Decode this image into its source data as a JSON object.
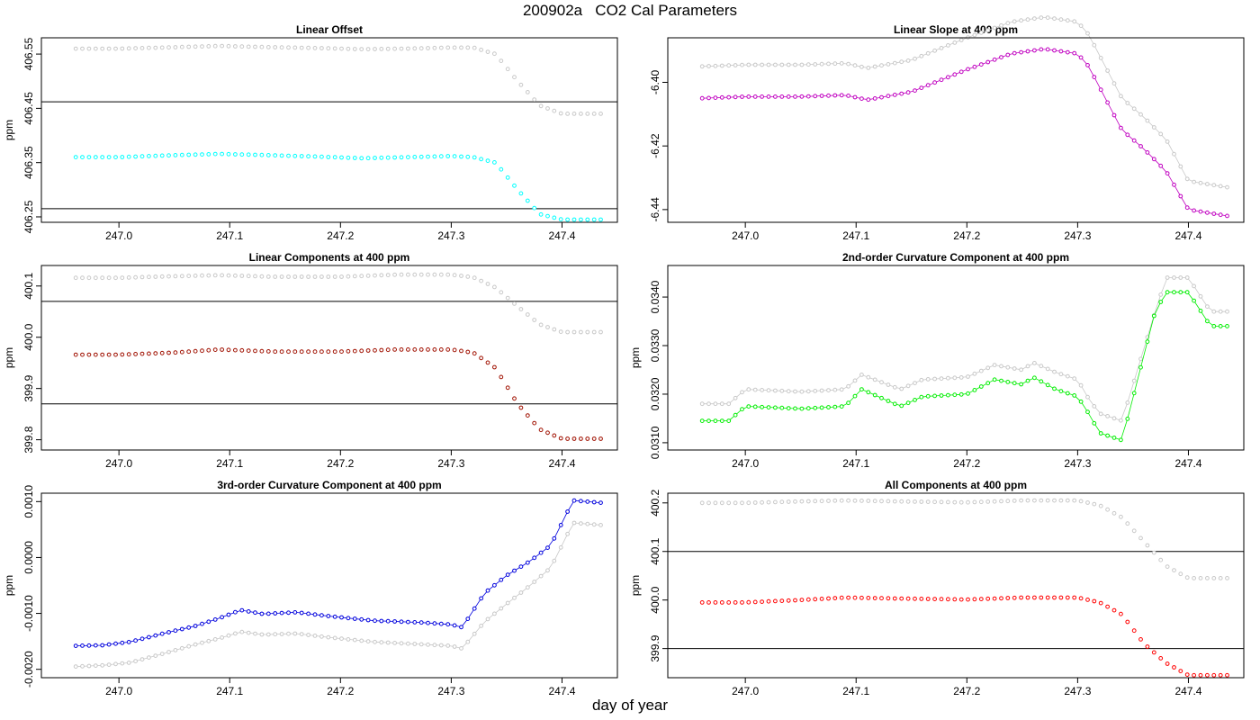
{
  "page": {
    "title": "200902a   CO2 Cal Parameters",
    "xlabel": "day of year"
  },
  "colors": {
    "reference_series": "#c8c8c8",
    "hline": "#000000",
    "frame": "#000000"
  },
  "chart_data": [
    {
      "type": "scatter",
      "title": "Linear Offset",
      "ylabel": "ppm",
      "xlim": [
        246.93,
        247.45
      ],
      "ylim": [
        406.24,
        406.58
      ],
      "xticks": [
        "247.0",
        "247.1",
        "247.2",
        "247.3",
        "247.4"
      ],
      "yticks": [
        "406.25",
        "406.35",
        "406.45",
        "406.55"
      ],
      "hlines": [
        406.265,
        406.462
      ],
      "series": [
        {
          "color": "#c8c8c8",
          "style": "points",
          "x": [
            246.961,
            247.0,
            247.04,
            247.09,
            247.13,
            247.18,
            247.22,
            247.26,
            247.3,
            247.32,
            247.34,
            247.36,
            247.38,
            247.4,
            247.435
          ],
          "y": [
            406.56,
            406.56,
            406.562,
            406.565,
            406.563,
            406.561,
            406.559,
            406.56,
            406.562,
            406.562,
            406.55,
            406.5,
            406.455,
            406.44,
            406.44
          ]
        },
        {
          "color": "#00ffff",
          "style": "points",
          "x": [
            246.961,
            247.0,
            247.04,
            247.09,
            247.13,
            247.18,
            247.22,
            247.26,
            247.3,
            247.32,
            247.34,
            247.36,
            247.38,
            247.4,
            247.435
          ],
          "y": [
            406.36,
            406.36,
            406.363,
            406.366,
            406.364,
            406.361,
            406.358,
            406.36,
            406.362,
            406.36,
            406.35,
            406.3,
            406.255,
            406.245,
            406.245
          ]
        }
      ]
    },
    {
      "type": "scatter",
      "title": "Linear Slope at 400 ppm",
      "ylabel": "",
      "xlim": [
        246.93,
        247.45
      ],
      "ylim": [
        -6.444,
        -6.386
      ],
      "xticks": [
        "247.0",
        "247.1",
        "247.2",
        "247.3",
        "247.4"
      ],
      "yticks": [
        "-6.44",
        "-6.42",
        "-6.40"
      ],
      "hlines": [],
      "series": [
        {
          "color": "#c8c8c8",
          "style": "line-points",
          "x": [
            246.961,
            247.0,
            247.05,
            247.09,
            247.11,
            247.15,
            247.2,
            247.24,
            247.27,
            247.3,
            247.31,
            247.325,
            247.34,
            247.36,
            247.38,
            247.4,
            247.435
          ],
          "y": [
            -6.395,
            -6.3945,
            -6.3945,
            -6.394,
            -6.3955,
            -6.393,
            -6.386,
            -6.381,
            -6.3795,
            -6.381,
            -6.385,
            -6.395,
            -6.405,
            -6.411,
            -6.418,
            -6.431,
            -6.433
          ]
        },
        {
          "color": "#c000c0",
          "style": "line-points",
          "x": [
            246.961,
            247.0,
            247.05,
            247.09,
            247.11,
            247.15,
            247.2,
            247.24,
            247.27,
            247.3,
            247.31,
            247.325,
            247.34,
            247.36,
            247.38,
            247.4,
            247.435
          ],
          "y": [
            -6.405,
            -6.4045,
            -6.4045,
            -6.404,
            -6.4055,
            -6.403,
            -6.396,
            -6.391,
            -6.3895,
            -6.391,
            -6.395,
            -6.405,
            -6.415,
            -6.421,
            -6.428,
            -6.44,
            -6.442
          ]
        }
      ]
    },
    {
      "type": "scatter",
      "title": "Linear Components at 400 ppm",
      "ylabel": "ppm",
      "xlim": [
        246.93,
        247.45
      ],
      "ylim": [
        399.78,
        400.14
      ],
      "xticks": [
        "247.0",
        "247.1",
        "247.2",
        "247.3",
        "247.4"
      ],
      "yticks": [
        "399.8",
        "399.9",
        "400.0",
        "400.1"
      ],
      "hlines": [
        399.87,
        400.07
      ],
      "series": [
        {
          "color": "#c8c8c8",
          "style": "points",
          "x": [
            246.961,
            247.0,
            247.05,
            247.09,
            247.14,
            247.2,
            247.25,
            247.3,
            247.32,
            247.34,
            247.36,
            247.38,
            247.4,
            247.435
          ],
          "y": [
            400.116,
            400.116,
            400.119,
            400.121,
            400.118,
            400.118,
            400.122,
            400.122,
            400.117,
            400.097,
            400.06,
            400.025,
            400.01,
            400.01
          ]
        },
        {
          "color": "#a01000",
          "style": "points",
          "x": [
            246.961,
            247.0,
            247.05,
            247.09,
            247.14,
            247.2,
            247.25,
            247.3,
            247.32,
            247.34,
            247.36,
            247.38,
            247.4,
            247.435
          ],
          "y": [
            399.966,
            399.966,
            399.97,
            399.976,
            399.972,
            399.972,
            399.976,
            399.976,
            399.97,
            399.94,
            399.87,
            399.82,
            399.802,
            399.802
          ]
        }
      ]
    },
    {
      "type": "scatter",
      "title": "2nd-order Curvature Component at 400 ppm",
      "ylabel": "ppm",
      "xlim": [
        246.93,
        247.45
      ],
      "ylim": [
        0.03085,
        0.03465
      ],
      "xticks": [
        "247.0",
        "247.1",
        "247.2",
        "247.3",
        "247.4"
      ],
      "yticks": [
        "0.0310",
        "0.0320",
        "0.0330",
        "0.0340"
      ],
      "hlines": [],
      "series": [
        {
          "color": "#c8c8c8",
          "style": "line-points",
          "x": [
            246.961,
            246.985,
            247.0,
            247.05,
            247.09,
            247.105,
            247.14,
            247.16,
            247.2,
            247.225,
            247.25,
            247.26,
            247.28,
            247.3,
            247.31,
            247.32,
            247.34,
            247.37,
            247.38,
            247.4,
            247.42,
            247.435
          ],
          "y": [
            0.0318,
            0.0318,
            0.0321,
            0.03205,
            0.0321,
            0.0324,
            0.0321,
            0.0323,
            0.03235,
            0.0326,
            0.0325,
            0.03265,
            0.03245,
            0.0323,
            0.0319,
            0.0316,
            0.03145,
            0.0337,
            0.0344,
            0.0344,
            0.0337,
            0.0337
          ]
        },
        {
          "color": "#00ee00",
          "style": "line-points",
          "x": [
            246.961,
            246.985,
            247.0,
            247.05,
            247.09,
            247.105,
            247.14,
            247.16,
            247.2,
            247.225,
            247.25,
            247.26,
            247.28,
            247.3,
            247.31,
            247.32,
            247.34,
            247.37,
            247.38,
            247.4,
            247.42,
            247.435
          ],
          "y": [
            0.03145,
            0.03145,
            0.03175,
            0.0317,
            0.03175,
            0.0321,
            0.03175,
            0.03195,
            0.032,
            0.0323,
            0.0322,
            0.03235,
            0.0321,
            0.03195,
            0.0316,
            0.0312,
            0.03105,
            0.0337,
            0.0341,
            0.0341,
            0.0334,
            0.0334
          ]
        }
      ]
    },
    {
      "type": "scatter",
      "title": "3rd-order Curvature Component at 400 ppm",
      "ylabel": "ppm",
      "xlim": [
        246.93,
        247.45
      ],
      "ylim": [
        -0.00215,
        0.00115
      ],
      "xticks": [
        "247.0",
        "247.1",
        "247.2",
        "247.3",
        "247.4"
      ],
      "yticks": [
        "-0.0020",
        "-0.0010",
        "0.0000",
        "0.0010"
      ],
      "hlines": [],
      "series": [
        {
          "color": "#c8c8c8",
          "style": "line-points",
          "x": [
            246.961,
            246.985,
            247.01,
            247.04,
            247.07,
            247.09,
            247.11,
            247.13,
            247.16,
            247.19,
            247.23,
            247.27,
            247.3,
            247.31,
            247.33,
            247.35,
            247.37,
            247.39,
            247.41,
            247.435
          ],
          "y": [
            -0.00195,
            -0.00193,
            -0.00188,
            -0.00172,
            -0.00155,
            -0.00145,
            -0.00133,
            -0.00138,
            -0.00136,
            -0.00143,
            -0.00151,
            -0.00155,
            -0.00158,
            -0.00163,
            -0.00115,
            -0.00083,
            -0.00052,
            -0.00018,
            0.00062,
            0.00058
          ]
        },
        {
          "color": "#0000dd",
          "style": "line-points",
          "x": [
            246.961,
            246.985,
            247.01,
            247.04,
            247.07,
            247.09,
            247.11,
            247.13,
            247.16,
            247.19,
            247.23,
            247.27,
            247.3,
            247.31,
            247.33,
            247.35,
            247.37,
            247.39,
            247.41,
            247.435
          ],
          "y": [
            -0.00158,
            -0.00157,
            -0.00151,
            -0.00136,
            -0.00122,
            -0.00109,
            -0.00094,
            -0.00101,
            -0.00098,
            -0.00105,
            -0.00113,
            -0.00116,
            -0.0012,
            -0.00125,
            -0.00064,
            -0.00032,
            -8e-05,
            0.00022,
            0.00102,
            0.00098
          ]
        }
      ]
    },
    {
      "type": "scatter",
      "title": "All Components at 400 ppm",
      "ylabel": "ppm",
      "xlim": [
        246.93,
        247.45
      ],
      "ylim": [
        399.84,
        400.22
      ],
      "xticks": [
        "247.0",
        "247.1",
        "247.2",
        "247.3",
        "247.4"
      ],
      "yticks": [
        "399.9",
        "400.0",
        "400.1",
        "400.2"
      ],
      "hlines": [
        399.9,
        400.1
      ],
      "series": [
        {
          "color": "#c8c8c8",
          "style": "points",
          "x": [
            246.961,
            247.0,
            247.05,
            247.09,
            247.14,
            247.2,
            247.25,
            247.3,
            247.32,
            247.34,
            247.36,
            247.38,
            247.4,
            247.435
          ],
          "y": [
            400.2,
            400.2,
            400.203,
            400.205,
            400.203,
            400.201,
            400.205,
            400.205,
            400.195,
            400.17,
            400.12,
            400.07,
            400.045,
            400.045
          ]
        },
        {
          "color": "#ff0000",
          "style": "points",
          "x": [
            246.961,
            247.0,
            247.05,
            247.09,
            247.14,
            247.2,
            247.25,
            247.3,
            247.32,
            247.34,
            247.36,
            247.38,
            247.4,
            247.435
          ],
          "y": [
            399.995,
            399.995,
            400.0,
            400.005,
            400.003,
            400.001,
            400.005,
            400.005,
            399.995,
            399.97,
            399.91,
            399.87,
            399.845,
            399.845
          ]
        }
      ]
    }
  ]
}
